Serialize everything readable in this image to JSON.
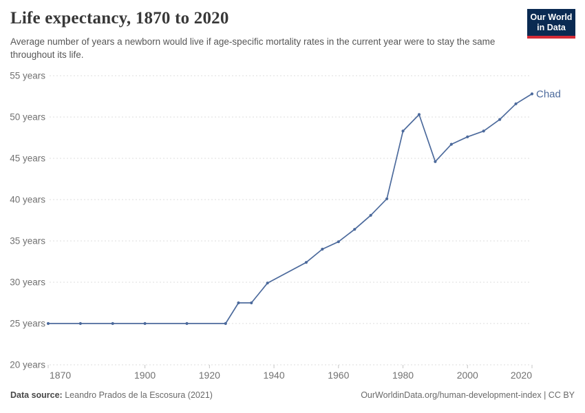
{
  "header": {
    "title": "Life expectancy, 1870 to 2020",
    "subtitle": "Average number of years a newborn would live if age-specific mortality rates in the current year were to stay the same throughout its life."
  },
  "logo": {
    "line1": "Our World",
    "line2": "in Data"
  },
  "chart_data": {
    "type": "line",
    "title": "Life expectancy, 1870 to 2020",
    "xlabel": "",
    "ylabel": "",
    "xlim": [
      1870,
      2020
    ],
    "ylim": [
      20,
      55
    ],
    "grid": "horizontal-dashed",
    "legend_position": "end-of-line-label",
    "x_ticks": [
      1870,
      1900,
      1920,
      1940,
      1960,
      1980,
      2000,
      2020
    ],
    "y_ticks": [
      20,
      25,
      30,
      35,
      40,
      45,
      50,
      55
    ],
    "y_tick_suffix": " years",
    "series": [
      {
        "name": "Chad",
        "x": [
          1870,
          1880,
          1890,
          1900,
          1913,
          1925,
          1929,
          1933,
          1938,
          1950,
          1955,
          1960,
          1965,
          1970,
          1975,
          1980,
          1985,
          1990,
          1995,
          2000,
          2005,
          2010,
          2015,
          2020
        ],
        "values": [
          25.0,
          25.0,
          25.0,
          25.0,
          25.0,
          25.0,
          27.5,
          27.5,
          29.9,
          32.4,
          34.0,
          34.9,
          36.4,
          38.1,
          40.1,
          48.3,
          50.3,
          44.6,
          46.7,
          47.6,
          48.3,
          49.7,
          51.6,
          52.8
        ]
      }
    ]
  },
  "footer": {
    "source_label": "Data source:",
    "source_value": "Leandro Prados de la Escosura (2021)",
    "url": "OurWorldinData.org/human-development-index",
    "separator": " | ",
    "license": "CC BY"
  },
  "colors": {
    "line": "#4c6a9c",
    "series_label": "#4c6a9c",
    "grid": "#dddddd",
    "tick": "#c4c4c4",
    "axis_text": "#717171",
    "logo_navy": "#0a2a52",
    "logo_red": "#d42b36"
  }
}
